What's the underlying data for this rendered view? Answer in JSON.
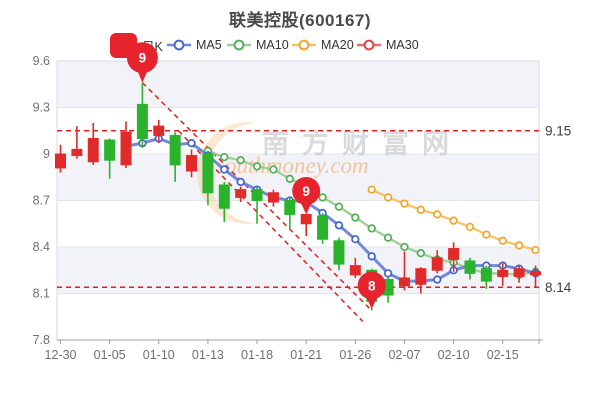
{
  "chart_data": {
    "type": "candlestick",
    "title": "联美控股(600167)",
    "stock_code": "600167",
    "legend": [
      {
        "label": "日K",
        "kind": "kline",
        "color": "#e7232e"
      },
      {
        "label": "MA5",
        "kind": "line",
        "color": "#4a6cc8",
        "line_color": "#6d83d4"
      },
      {
        "label": "MA10",
        "kind": "line",
        "color": "#57b05a",
        "line_color": "#9bcd97"
      },
      {
        "label": "MA20",
        "kind": "line",
        "color": "#f0a62c",
        "line_color": "#f5c263"
      },
      {
        "label": "MA30",
        "kind": "line",
        "color": "#e04646",
        "line_color": "#e86a6a"
      }
    ],
    "ylim": [
      7.8,
      9.6
    ],
    "y_ticks": [
      "9.6",
      "9.3",
      "9",
      "8.7",
      "8.4",
      "8.1",
      "7.8"
    ],
    "x_labels": [
      "12-30",
      "01-05",
      "01-10",
      "01-13",
      "01-18",
      "01-21",
      "01-26",
      "02-07",
      "02-10",
      "02-15"
    ],
    "x_label_step": 3,
    "up_color": "#e12a2a",
    "down_color": "#2bb32b",
    "candles_ochl": [
      [
        8.91,
        9.0,
        9.06,
        8.88
      ],
      [
        8.99,
        9.03,
        9.18,
        8.97
      ],
      [
        8.95,
        9.1,
        9.2,
        8.93
      ],
      [
        9.09,
        8.96,
        9.1,
        8.84
      ],
      [
        8.93,
        9.14,
        9.21,
        8.91
      ],
      [
        9.32,
        9.1,
        9.46,
        9.04
      ],
      [
        9.12,
        9.18,
        9.22,
        9.07
      ],
      [
        9.12,
        8.93,
        9.14,
        8.82
      ],
      [
        8.89,
        8.99,
        9.03,
        8.85
      ],
      [
        9.0,
        8.75,
        9.02,
        8.67
      ],
      [
        8.8,
        8.65,
        8.82,
        8.56
      ],
      [
        8.72,
        8.77,
        8.79,
        8.69
      ],
      [
        8.77,
        8.7,
        8.79,
        8.55
      ],
      [
        8.69,
        8.75,
        8.77,
        8.66
      ],
      [
        8.7,
        8.61,
        8.72,
        8.52
      ],
      [
        8.55,
        8.61,
        8.61,
        8.47
      ],
      [
        8.6,
        8.45,
        8.62,
        8.42
      ],
      [
        8.44,
        8.29,
        8.46,
        8.25
      ],
      [
        8.22,
        8.28,
        8.33,
        8.2
      ],
      [
        8.25,
        8.05,
        8.26,
        7.99
      ],
      [
        8.19,
        8.09,
        8.21,
        8.04
      ],
      [
        8.15,
        8.2,
        8.37,
        8.12
      ],
      [
        8.16,
        8.26,
        8.27,
        8.1
      ],
      [
        8.25,
        8.33,
        8.38,
        8.23
      ],
      [
        8.32,
        8.39,
        8.43,
        8.24
      ],
      [
        8.31,
        8.23,
        8.33,
        8.19
      ],
      [
        8.26,
        8.18,
        8.28,
        8.13
      ],
      [
        8.21,
        8.25,
        8.3,
        8.15
      ],
      [
        8.21,
        8.26,
        8.28,
        8.17
      ],
      [
        8.22,
        8.24,
        8.28,
        8.14
      ]
    ],
    "series": [
      {
        "name": "MA5",
        "start_index": 4,
        "line_color": "#6d83d4",
        "ring_color": "#3f63cb",
        "width": 3,
        "values": [
          9.05,
          9.07,
          9.1,
          9.06,
          9.07,
          8.99,
          8.9,
          8.82,
          8.77,
          8.72,
          8.7,
          8.69,
          8.62,
          8.54,
          8.45,
          8.34,
          8.23,
          8.18,
          8.18,
          8.19,
          8.25,
          8.28,
          8.28,
          8.28,
          8.26,
          8.23
        ]
      },
      {
        "name": "MA10",
        "start_index": 9,
        "line_color": "#9bcd97",
        "ring_color": "#53ae53",
        "width": 2.4,
        "values": [
          9.02,
          8.98,
          8.96,
          8.92,
          8.9,
          8.84,
          8.79,
          8.72,
          8.66,
          8.59,
          8.52,
          8.46,
          8.4,
          8.36,
          8.32,
          8.3,
          8.26,
          8.23,
          8.23,
          8.22,
          8.24
        ]
      },
      {
        "name": "MA20",
        "start_index": 19,
        "line_color": "#f5c263",
        "ring_color": "#f0a62c",
        "width": 2.4,
        "values": [
          8.77,
          8.72,
          8.68,
          8.64,
          8.61,
          8.57,
          8.53,
          8.48,
          8.44,
          8.41,
          8.38
        ]
      }
    ],
    "ref_lines": [
      {
        "value": 9.15,
        "label": "9.15"
      },
      {
        "value": 8.14,
        "label": "8.14"
      }
    ],
    "trend_lines": [
      {
        "i1": 5,
        "v1": 9.46,
        "i2": 19,
        "v2": 7.99
      },
      {
        "i1": 7.2,
        "v1": 9.15,
        "i2": 18.45,
        "v2": 7.92
      }
    ],
    "balloons": [
      {
        "label": "9",
        "index": 5,
        "value": 9.46,
        "radius": 15.5
      },
      {
        "label": "9",
        "index": 15,
        "value": 8.61,
        "radius": 14
      },
      {
        "label": "8",
        "index": 19,
        "value": 8.0,
        "radius": 14
      }
    ],
    "watermark": {
      "text": "南方财富网",
      "subtext": "southmoney.com"
    },
    "colors": {
      "band": "#f1f3f9",
      "grid": "#e2e5ec",
      "border": "#d6dae3",
      "axis": "#9aa0a8",
      "tick_text": "#6e7079",
      "ref_red": "#e31e1e",
      "ref_label": "#3d3d3d",
      "balloon": "#e7232e",
      "wm_text": "#b9bcc2",
      "wm_sub": "#eda75f",
      "wm_moon": "#f6c289"
    }
  }
}
